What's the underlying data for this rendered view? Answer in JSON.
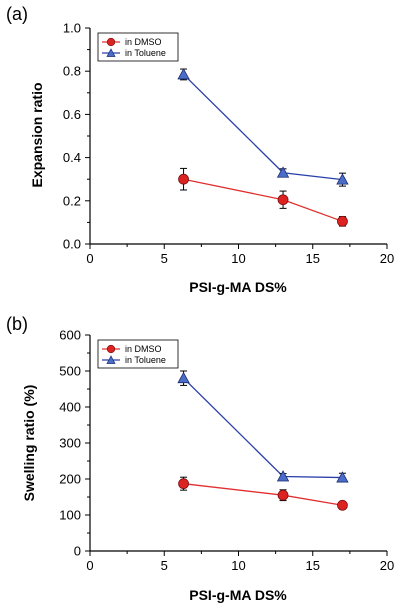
{
  "colors": {
    "dmso": "#e03030",
    "toluene": "#2a3fa8",
    "dmso_marker": "#dd2222",
    "toluene_marker": "#4a6ec8",
    "axis": "#000000"
  },
  "chart_data": [
    {
      "panel_label": "(a)",
      "type": "line",
      "xlabel": "PSI-g-MA DS%",
      "ylabel": "Expansion ratio",
      "xlim": [
        0,
        20
      ],
      "ylim": [
        0,
        1.0
      ],
      "xticks": [
        "0",
        "5",
        "10",
        "15",
        "20"
      ],
      "yticks": [
        "0.0",
        "0.2",
        "0.4",
        "0.6",
        "0.8",
        "1.0"
      ],
      "legend_position": "top-left",
      "grid": false,
      "series": [
        {
          "name": "in DMSO",
          "marker": "circle",
          "x": [
            6.3,
            13.0,
            17.0
          ],
          "y": [
            0.3,
            0.205,
            0.105
          ],
          "err": [
            0.05,
            0.04,
            0.022
          ]
        },
        {
          "name": "in Toluene",
          "marker": "triangle",
          "x": [
            6.3,
            13.0,
            17.0
          ],
          "y": [
            0.785,
            0.33,
            0.298
          ],
          "err": [
            0.025,
            0.018,
            0.03
          ]
        }
      ]
    },
    {
      "panel_label": "(b)",
      "type": "line",
      "xlabel": "PSI-g-MA DS%",
      "ylabel": "Swelling ratio (%)",
      "xlim": [
        0,
        20
      ],
      "ylim": [
        0,
        600
      ],
      "xticks": [
        "0",
        "5",
        "10",
        "15",
        "20"
      ],
      "yticks": [
        "0",
        "100",
        "200",
        "300",
        "400",
        "500",
        "600"
      ],
      "legend_position": "top-left",
      "grid": false,
      "series": [
        {
          "name": "in DMSO",
          "marker": "circle",
          "x": [
            6.3,
            13.0,
            17.0
          ],
          "y": [
            187,
            155,
            127
          ],
          "err": [
            18,
            15,
            7
          ]
        },
        {
          "name": "in Toluene",
          "marker": "triangle",
          "x": [
            6.3,
            13.0,
            17.0
          ],
          "y": [
            480,
            207,
            204
          ],
          "err": [
            20,
            8,
            12
          ]
        }
      ]
    }
  ]
}
